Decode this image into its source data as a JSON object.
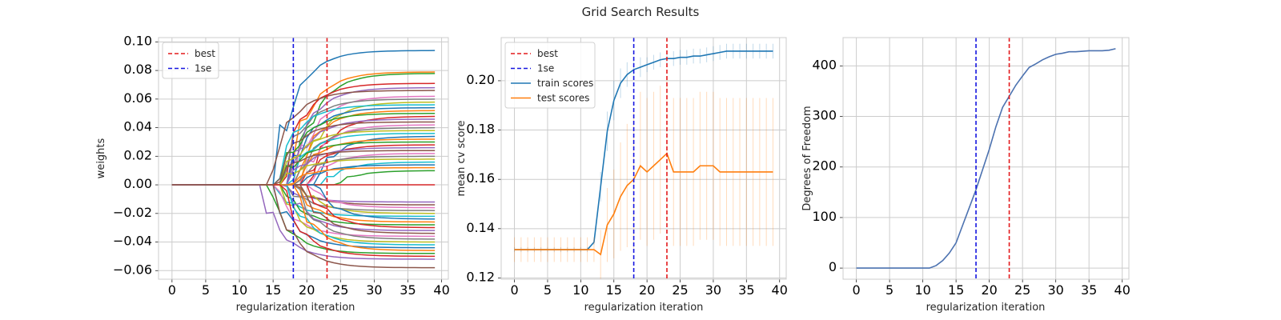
{
  "suptitle": "Grid Search Results",
  "colors": {
    "best": "#e41a1c",
    "one_se": "#1515e0",
    "train": "#1f77b4",
    "test": "#ff7f0e",
    "dof": "#4c72b0",
    "grid": "#cccccc",
    "spine": "#cccccc"
  },
  "chart_data": [
    {
      "type": "line",
      "title": "",
      "xlabel": "regularization iteration",
      "ylabel": "weights",
      "xlim": [
        -2,
        41
      ],
      "ylim": [
        -0.066,
        0.103
      ],
      "xticks": [
        0,
        5,
        10,
        15,
        20,
        25,
        30,
        35,
        40
      ],
      "yticks": [
        -0.06,
        -0.04,
        -0.02,
        0.0,
        0.02,
        0.04,
        0.06,
        0.08,
        0.1
      ],
      "ytick_labels": [
        "−0.06",
        "−0.04",
        "−0.02",
        "0.00",
        "0.02",
        "0.04",
        "0.06",
        "0.08",
        "0.10"
      ],
      "grid": true,
      "legend": {
        "position": "upper-left",
        "entries": [
          {
            "label": "best",
            "color_key": "best",
            "dashed": true
          },
          {
            "label": "1se",
            "color_key": "one_se",
            "dashed": true
          }
        ]
      },
      "vlines": [
        {
          "name": "best",
          "x": 23
        },
        {
          "name": "1se",
          "x": 18
        }
      ],
      "coefficient_paths": {
        "x_range": [
          0,
          39
        ],
        "final_values": [
          0.094,
          0.079,
          0.078,
          0.071,
          0.068,
          0.066,
          0.062,
          0.06,
          0.058,
          0.056,
          0.054,
          0.052,
          0.05,
          0.048,
          0.046,
          0.044,
          0.042,
          0.04,
          0.038,
          0.036,
          0.034,
          0.032,
          0.03,
          0.028,
          0.026,
          0.024,
          0.022,
          0.02,
          0.018,
          0.016,
          0.014,
          0.012,
          0.01,
          0.0,
          -0.012,
          -0.014,
          -0.016,
          -0.018,
          -0.02,
          -0.022,
          -0.024,
          -0.026,
          -0.028,
          -0.03,
          -0.032,
          -0.034,
          -0.036,
          -0.038,
          -0.04,
          -0.042,
          -0.044,
          -0.046,
          -0.048,
          -0.05,
          -0.052,
          -0.058
        ],
        "start_iterations": [
          15,
          17,
          18,
          16,
          17,
          14,
          18,
          16,
          19,
          15,
          17,
          18,
          16,
          20,
          17,
          15,
          19,
          18,
          16,
          17,
          21,
          18,
          16,
          19,
          17,
          15,
          20,
          18,
          16,
          22,
          19,
          17,
          24,
          11,
          16,
          18,
          20,
          17,
          19,
          15,
          21,
          18,
          16,
          20,
          17,
          19,
          15,
          18,
          16,
          17,
          15,
          18,
          14,
          16,
          13,
          15
        ]
      }
    },
    {
      "type": "line",
      "title": "",
      "xlabel": "regularization iteration",
      "ylabel": "mean cv score",
      "xlim": [
        -2,
        41
      ],
      "ylim": [
        0.1195,
        0.2175
      ],
      "xticks": [
        0,
        5,
        10,
        15,
        20,
        25,
        30,
        35,
        40
      ],
      "yticks": [
        0.12,
        0.14,
        0.16,
        0.18,
        0.2
      ],
      "ytick_labels": [
        "0.12",
        "0.14",
        "0.16",
        "0.18",
        "0.20"
      ],
      "grid": true,
      "legend": {
        "position": "upper-left",
        "entries": [
          {
            "label": "best",
            "color_key": "best",
            "dashed": true
          },
          {
            "label": "1se",
            "color_key": "one_se",
            "dashed": true
          },
          {
            "label": "train scores",
            "color_key": "train",
            "dashed": false
          },
          {
            "label": "test scores",
            "color_key": "test",
            "dashed": false
          }
        ]
      },
      "vlines": [
        {
          "name": "best",
          "x": 23
        },
        {
          "name": "1se",
          "x": 18
        }
      ],
      "x": [
        0,
        1,
        2,
        3,
        4,
        5,
        6,
        7,
        8,
        9,
        10,
        11,
        12,
        13,
        14,
        15,
        16,
        17,
        18,
        19,
        20,
        21,
        22,
        23,
        24,
        25,
        26,
        27,
        28,
        29,
        30,
        31,
        32,
        33,
        34,
        35,
        36,
        37,
        38,
        39
      ],
      "series": [
        {
          "name": "train scores",
          "values": [
            0.1315,
            0.1315,
            0.1315,
            0.1315,
            0.1315,
            0.1315,
            0.1315,
            0.1315,
            0.1315,
            0.1315,
            0.1315,
            0.1315,
            0.1345,
            0.157,
            0.1795,
            0.192,
            0.199,
            0.2025,
            0.2045,
            0.2055,
            0.2065,
            0.2075,
            0.2085,
            0.209,
            0.209,
            0.2095,
            0.2095,
            0.21,
            0.21,
            0.2105,
            0.211,
            0.2115,
            0.212,
            0.212,
            0.212,
            0.212,
            0.212,
            0.212,
            0.212,
            0.212
          ],
          "err": [
            0.001,
            0.001,
            0.001,
            0.001,
            0.001,
            0.001,
            0.001,
            0.001,
            0.001,
            0.001,
            0.001,
            0.001,
            0.001,
            0.006,
            0.008,
            0.008,
            0.006,
            0.005,
            0.004,
            0.004,
            0.003,
            0.003,
            0.003,
            0.003,
            0.003,
            0.003,
            0.003,
            0.003,
            0.003,
            0.003,
            0.003,
            0.003,
            0.003,
            0.003,
            0.003,
            0.003,
            0.003,
            0.003,
            0.003,
            0.003
          ]
        },
        {
          "name": "test scores",
          "values": [
            0.1315,
            0.1315,
            0.1315,
            0.1315,
            0.1315,
            0.1315,
            0.1315,
            0.1315,
            0.1315,
            0.1315,
            0.1315,
            0.1315,
            0.1315,
            0.1295,
            0.1415,
            0.146,
            0.153,
            0.1575,
            0.16,
            0.1655,
            0.163,
            0.1655,
            0.168,
            0.1705,
            0.163,
            0.163,
            0.163,
            0.163,
            0.1655,
            0.1655,
            0.1655,
            0.163,
            0.163,
            0.163,
            0.163,
            0.163,
            0.163,
            0.163,
            0.163,
            0.163
          ],
          "err": [
            0.005,
            0.005,
            0.005,
            0.005,
            0.005,
            0.005,
            0.005,
            0.005,
            0.005,
            0.005,
            0.005,
            0.005,
            0.005,
            0.01,
            0.015,
            0.018,
            0.022,
            0.025,
            0.028,
            0.03,
            0.03,
            0.03,
            0.03,
            0.03,
            0.03,
            0.03,
            0.03,
            0.03,
            0.03,
            0.03,
            0.03,
            0.03,
            0.03,
            0.03,
            0.03,
            0.03,
            0.03,
            0.03,
            0.03,
            0.03
          ]
        }
      ]
    },
    {
      "type": "line",
      "title": "",
      "xlabel": "regularization iteration",
      "ylabel": "Degrees of Freedom",
      "xlim": [
        -2,
        41
      ],
      "ylim": [
        -22,
        456
      ],
      "xticks": [
        0,
        5,
        10,
        15,
        20,
        25,
        30,
        35,
        40
      ],
      "yticks": [
        0,
        100,
        200,
        300,
        400
      ],
      "ytick_labels": [
        "0",
        "100",
        "200",
        "300",
        "400"
      ],
      "grid": true,
      "vlines": [
        {
          "name": "best",
          "x": 23
        },
        {
          "name": "1se",
          "x": 18
        }
      ],
      "x": [
        0,
        1,
        2,
        3,
        4,
        5,
        6,
        7,
        8,
        9,
        10,
        11,
        12,
        13,
        14,
        15,
        16,
        17,
        18,
        19,
        20,
        21,
        22,
        23,
        24,
        25,
        26,
        27,
        28,
        29,
        30,
        31,
        32,
        33,
        34,
        35,
        36,
        37,
        38,
        39
      ],
      "series": [
        {
          "name": "",
          "values": [
            0,
            0,
            0,
            0,
            0,
            0,
            0,
            0,
            0,
            0,
            0,
            0,
            5,
            15,
            30,
            50,
            85,
            120,
            155,
            195,
            235,
            280,
            318,
            340,
            362,
            380,
            397,
            404,
            412,
            418,
            423,
            425,
            428,
            428,
            429,
            430,
            430,
            430,
            431,
            434
          ]
        }
      ]
    }
  ]
}
